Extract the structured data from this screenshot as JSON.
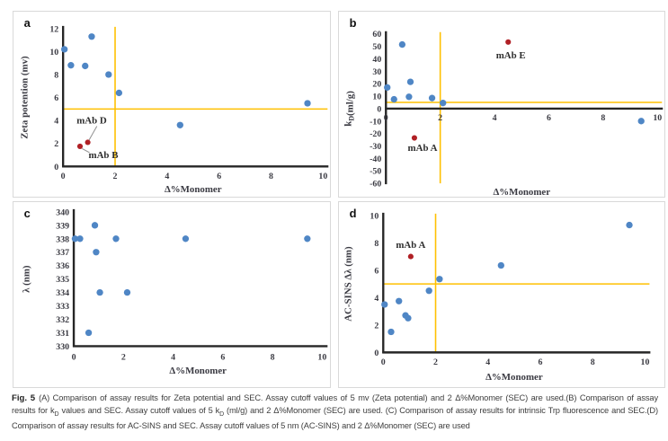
{
  "caption": {
    "label": "Fig. 5",
    "segments": [
      {
        "t": "(A) Comparison of assay results for Zeta potential and SEC. Assay cutoff values of 5 mv (Zeta potential) and 2 Δ%Monomer (SEC) are used.(B) Comparison of assay results for k"
      },
      {
        "t": "D",
        "sub": true
      },
      {
        "t": " values and SEC. Assay cutoff values of 5 k"
      },
      {
        "t": "D",
        "sub": true
      },
      {
        "t": " (ml/g) and 2 Δ%Monomer (SEC) are used. (C) Comparison of assay results for intrinsic Trp fluorescence and SEC.(D) Comparison of assay results for AC-SINS and SEC. Assay cutoff values of 5 nm (AC-SINS) and 2 Δ%Monomer (SEC) are used"
      }
    ]
  },
  "colors": {
    "point_blue": "#4f86c5",
    "point_red": "#b02025",
    "cutoff_orange": "#ffc000",
    "axis_black": "#262626",
    "tick_text": "#3a3a42"
  },
  "chart_data": [
    {
      "panel": "a",
      "type": "scatter",
      "xlabel": "Δ%Monomer",
      "ylabel": "Zeta potention (mv)",
      "xlim": [
        0,
        10
      ],
      "xticks": [
        0,
        2,
        4,
        6,
        8,
        10
      ],
      "ylim": [
        0,
        12
      ],
      "yticks": [
        0,
        2,
        4,
        6,
        8,
        10,
        12
      ],
      "grid": false,
      "legend": false,
      "cutoffs": {
        "h": 5,
        "v": 2,
        "color": "#ffc000"
      },
      "series": [
        {
          "name": "mAbs",
          "color": "#4f86c5",
          "r": 3.7,
          "points": [
            [
              0.05,
              10.2
            ],
            [
              0.3,
              8.8
            ],
            [
              0.85,
              8.75
            ],
            [
              1.1,
              11.3
            ],
            [
              1.75,
              8.0
            ],
            [
              2.15,
              6.4
            ],
            [
              4.5,
              3.6
            ],
            [
              9.4,
              5.5
            ]
          ]
        },
        {
          "name": "highlighted-mAbs",
          "color": "#b02025",
          "r": 3.1,
          "points": [
            [
              0.65,
              1.75
            ],
            [
              0.95,
              2.1
            ]
          ]
        }
      ],
      "annotations": [
        {
          "text": "mAb D",
          "x": 1.1,
          "y": 4.0,
          "leader": [
            1.3,
            3.5,
            1.0,
            2.3
          ]
        },
        {
          "text": "mAb B",
          "x": 1.55,
          "y": 1.0,
          "leader": [
            0.73,
            1.55,
            1.02,
            1.2
          ]
        }
      ]
    },
    {
      "panel": "b",
      "type": "scatter",
      "xlabel": "Δ%Monomer",
      "ylabel": [
        {
          "t": "k"
        },
        {
          "t": "D",
          "sub": true
        },
        {
          "t": "(ml/g)"
        }
      ],
      "xlim": [
        0,
        10
      ],
      "xticks": [
        0,
        2,
        4,
        6,
        8,
        10
      ],
      "ylim": [
        -60,
        60
      ],
      "yticks": [
        -60,
        -50,
        -40,
        -30,
        -20,
        -10,
        0,
        10,
        20,
        30,
        40,
        50,
        60
      ],
      "grid": false,
      "legend": false,
      "x_axis_at": 0,
      "cutoffs": {
        "h": 5,
        "v": 2,
        "color": "#ffc000"
      },
      "series": [
        {
          "name": "mAbs",
          "color": "#4f86c5",
          "r": 3.7,
          "points": [
            [
              0.05,
              17
            ],
            [
              0.3,
              7.5
            ],
            [
              0.6,
              51.5
            ],
            [
              0.85,
              9.5
            ],
            [
              0.9,
              21.5
            ],
            [
              1.7,
              8.5
            ],
            [
              2.1,
              4.5
            ],
            [
              9.4,
              -10
            ]
          ]
        },
        {
          "name": "highlighted-mAbs",
          "color": "#b02025",
          "r": 3.1,
          "points": [
            [
              4.5,
              53.5
            ],
            [
              1.05,
              -23.5
            ]
          ]
        }
      ],
      "annotations": [
        {
          "text": "mAb E",
          "x": 4.6,
          "y": 43
        },
        {
          "text": "mAb A",
          "x": 1.35,
          "y": -31.5
        }
      ]
    },
    {
      "panel": "c",
      "type": "scatter",
      "xlabel": "Δ%Monomer",
      "ylabel": "λ (nm)",
      "xlim": [
        0,
        10
      ],
      "xticks": [
        0,
        2,
        4,
        6,
        8,
        10
      ],
      "ylim": [
        330,
        340
      ],
      "yticks": [
        330,
        331,
        332,
        333,
        334,
        335,
        336,
        337,
        338,
        339,
        340
      ],
      "grid": false,
      "legend": false,
      "series": [
        {
          "name": "mAbs",
          "color": "#4f86c5",
          "r": 3.7,
          "points": [
            [
              0.05,
              338
            ],
            [
              0.25,
              338
            ],
            [
              0.6,
              331
            ],
            [
              0.85,
              339
            ],
            [
              0.9,
              337
            ],
            [
              1.05,
              334
            ],
            [
              1.7,
              338
            ],
            [
              2.15,
              334
            ],
            [
              4.5,
              338
            ],
            [
              9.4,
              338
            ]
          ]
        }
      ],
      "annotations": []
    },
    {
      "panel": "d",
      "type": "scatter",
      "xlabel": "Δ%Monomer",
      "ylabel": "AC-SINS Δλ (nm)",
      "xlim": [
        0,
        10
      ],
      "xticks": [
        0,
        2,
        4,
        6,
        8,
        10
      ],
      "ylim": [
        0,
        10
      ],
      "yticks": [
        0,
        2,
        4,
        6,
        8,
        10
      ],
      "grid": false,
      "legend": false,
      "cutoffs": {
        "h": 5,
        "v": 2,
        "color": "#ffc000"
      },
      "series": [
        {
          "name": "mAbs",
          "color": "#4f86c5",
          "r": 3.7,
          "points": [
            [
              0.05,
              3.5
            ],
            [
              0.3,
              1.5
            ],
            [
              0.6,
              3.75
            ],
            [
              0.85,
              2.7
            ],
            [
              0.95,
              2.5
            ],
            [
              1.75,
              4.5
            ],
            [
              2.15,
              5.35
            ],
            [
              4.5,
              6.35
            ],
            [
              9.4,
              9.3
            ]
          ]
        },
        {
          "name": "highlighted-mAbs",
          "color": "#b02025",
          "r": 3.1,
          "points": [
            [
              1.05,
              7.0
            ]
          ]
        }
      ],
      "annotations": [
        {
          "text": "mAb A",
          "x": 1.05,
          "y": 7.85
        }
      ]
    }
  ]
}
